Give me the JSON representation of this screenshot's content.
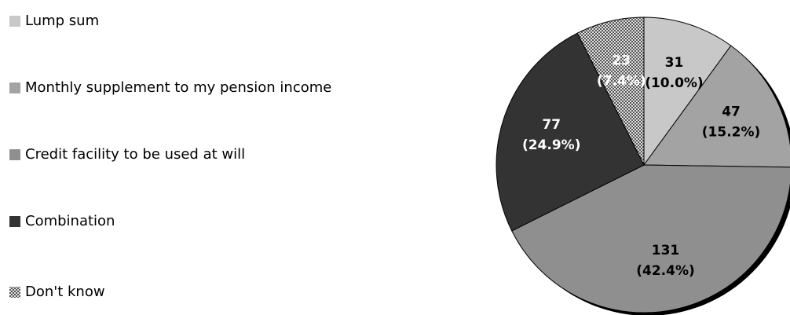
{
  "chart_data": {
    "type": "pie",
    "categories": [
      "Lump sum",
      "Monthly supplement to my pension income",
      "Credit facility to be used at will",
      "Combination",
      "Don't know"
    ],
    "values": [
      31,
      47,
      131,
      77,
      23
    ],
    "percent_labels": [
      "(10.0%)",
      "(15.2%)",
      "(42.4%)",
      "(24.9%)",
      "(7.4%)"
    ],
    "colors": [
      "#c8c8c8",
      "#a3a3a3",
      "#8f8f8f",
      "#333333",
      "#8a8a8a"
    ],
    "patterned": [
      false,
      false,
      false,
      false,
      true
    ],
    "legend": "left"
  }
}
